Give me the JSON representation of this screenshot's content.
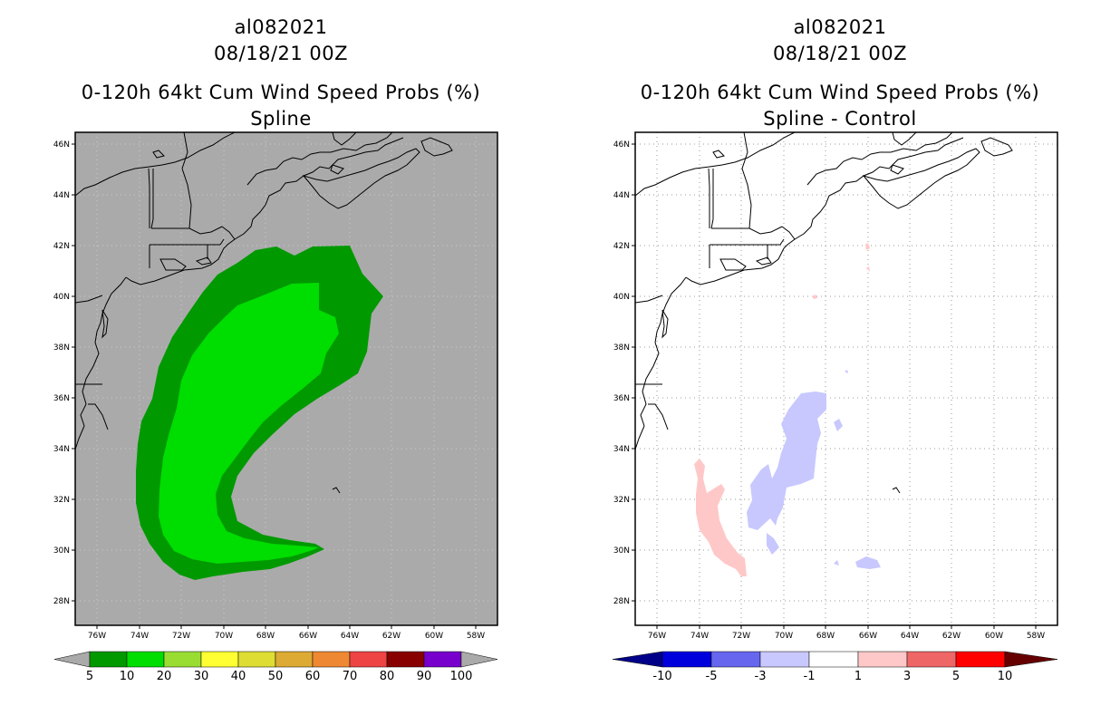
{
  "left_panel": {
    "title_lines": [
      "al082021",
      "08/18/21 00Z"
    ],
    "subtitle_lines": [
      "0-120h 64kt Cum Wind Speed Probs (%)",
      "Spline"
    ],
    "colorbar_labels": [
      "5",
      "10",
      "20",
      "30",
      "40",
      "50",
      "60",
      "70",
      "80",
      "90",
      "100"
    ],
    "colorbar_colors": [
      "#009900",
      "#00dd00",
      "#99dd33",
      "#ffff33",
      "#dddd33",
      "#ddaa33",
      "#ee8833",
      "#ee4444",
      "#880000",
      "#7700cc"
    ]
  },
  "right_panel": {
    "title_lines": [
      "al082021",
      "08/18/21 00Z"
    ],
    "subtitle_lines": [
      "0-120h 64kt Cum Wind Speed Probs (%)",
      "Spline - Control"
    ],
    "colorbar_labels": [
      "-10",
      "-5",
      "-3",
      "-1",
      "1",
      "3",
      "5",
      "10"
    ],
    "colorbar_colors": [
      "#0000dd",
      "#6666ee",
      "#c8c8ff",
      "#ffffff",
      "#ffc8c8",
      "#ee6666",
      "#ff0000"
    ]
  },
  "axes": {
    "lat_labels": [
      "46N",
      "44N",
      "42N",
      "40N",
      "38N",
      "36N",
      "34N",
      "32N",
      "30N",
      "28N"
    ],
    "lon_labels": [
      "76W",
      "74W",
      "72W",
      "70W",
      "68W",
      "66W",
      "64W",
      "62W",
      "60W",
      "58W"
    ]
  },
  "colors": {
    "land_sea_bg_left": "#aaaaaa",
    "prob_5": "#009900",
    "prob_10": "#00dd00",
    "diff_neg_small": "#c8c8ff",
    "diff_pos_small": "#ffc8c8",
    "grid": "#aaaaaa"
  }
}
